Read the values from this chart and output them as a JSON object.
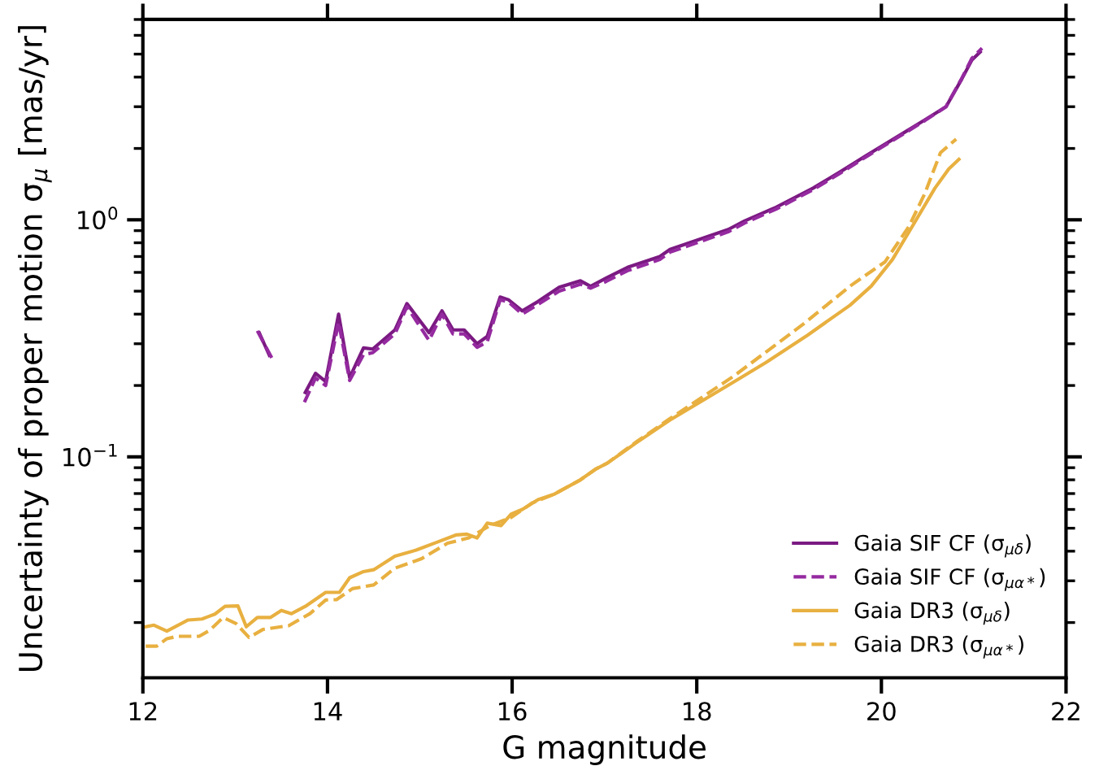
{
  "chart_data": {
    "type": "line",
    "xlabel": "G magnitude",
    "ylabel": "Uncertainty of proper motion σ$_{μ}$ [mas/yr]",
    "xlim": [
      12,
      22
    ],
    "xticks": [
      12,
      14,
      16,
      18,
      20,
      22
    ],
    "ylim": [
      0.0117,
      7.0
    ],
    "yticks": [
      {
        "value": 0.1,
        "label": "10$^{−1}$"
      },
      {
        "value": 1,
        "label": "10$^{0}$"
      }
    ],
    "log": "y",
    "grid": false,
    "legend": "bottom right",
    "series": [
      {
        "name": "Gaia SIF CF (σ$_{μδ}$)",
        "color": "#7b1a82",
        "line_style": "solid",
        "x": [
          13.26,
          13.37,
          13.5,
          13.76,
          13.87,
          13.98,
          14.12,
          14.24,
          14.39,
          14.49,
          14.73,
          14.86,
          15.1,
          15.24,
          15.36,
          15.48,
          15.62,
          15.73,
          15.87,
          15.96,
          16.11,
          16.28,
          16.51,
          16.74,
          16.85,
          17.02,
          17.25,
          17.6,
          17.71,
          18.0,
          18.34,
          18.52,
          18.86,
          19.26,
          19.55,
          19.84,
          20.18,
          20.47,
          20.7,
          20.87,
          20.98,
          21.07
        ],
        "values": [
          0.334,
          0.268,
          null,
          0.187,
          0.225,
          0.208,
          0.4,
          0.216,
          0.288,
          0.285,
          0.343,
          0.443,
          0.334,
          0.413,
          0.343,
          0.343,
          0.3,
          0.322,
          0.472,
          0.46,
          0.413,
          0.452,
          0.519,
          0.553,
          0.524,
          0.568,
          0.63,
          0.7,
          0.75,
          0.82,
          0.91,
          0.99,
          1.13,
          1.36,
          1.59,
          1.87,
          2.25,
          2.64,
          3.0,
          3.92,
          4.72,
          5.1
        ]
      },
      {
        "name": "Gaia SIF CF (σ$_{μα*}$)",
        "color": "#952aa0",
        "line_style": "dashed",
        "x": [
          13.24,
          13.4,
          13.5,
          13.75,
          13.87,
          13.98,
          14.12,
          14.24,
          14.39,
          14.49,
          14.73,
          14.86,
          15.1,
          15.24,
          15.36,
          15.48,
          15.62,
          15.73,
          15.87,
          15.96,
          16.11,
          16.28,
          16.51,
          16.74,
          16.85,
          17.02,
          17.25,
          17.6,
          17.71,
          18.0,
          18.34,
          18.52,
          18.86,
          19.26,
          19.55,
          19.84,
          20.18,
          20.47,
          20.7,
          20.87,
          20.98,
          21.09
        ],
        "values": [
          0.34,
          0.26,
          null,
          0.17,
          0.215,
          0.2,
          0.37,
          0.21,
          0.27,
          0.275,
          0.33,
          0.43,
          0.31,
          0.4,
          0.33,
          0.33,
          0.29,
          0.305,
          0.46,
          0.45,
          0.4,
          0.44,
          0.5,
          0.535,
          0.515,
          0.55,
          0.61,
          0.68,
          0.73,
          0.8,
          0.89,
          0.97,
          1.11,
          1.34,
          1.57,
          1.85,
          2.23,
          2.62,
          3.0,
          3.95,
          4.8,
          5.3
        ]
      },
      {
        "name": "Gaia DR3 (σ$_{μδ}$)",
        "color": "#e8b040",
        "line_style": "solid",
        "x": [
          12.03,
          12.12,
          12.26,
          12.49,
          12.64,
          12.78,
          12.89,
          13.03,
          13.12,
          13.24,
          13.38,
          13.5,
          13.61,
          13.76,
          13.98,
          14.13,
          14.24,
          14.39,
          14.5,
          14.73,
          14.96,
          15.19,
          15.39,
          15.51,
          15.62,
          15.73,
          15.88,
          15.99,
          16.11,
          16.28,
          16.45,
          16.74,
          16.91,
          17.03,
          17.35,
          17.71,
          18.4,
          18.75,
          19.2,
          19.66,
          19.89,
          20.12,
          20.35,
          20.58,
          20.73,
          20.84
        ],
        "values": [
          0.0192,
          0.0195,
          0.0184,
          0.0205,
          0.0207,
          0.0217,
          0.0234,
          0.0235,
          0.0192,
          0.021,
          0.021,
          0.0225,
          0.0218,
          0.0234,
          0.0268,
          0.0268,
          0.0309,
          0.0328,
          0.0334,
          0.0381,
          0.0404,
          0.0437,
          0.0468,
          0.0472,
          0.0455,
          0.0525,
          0.0513,
          0.0574,
          0.06,
          0.066,
          0.0694,
          0.08,
          0.089,
          0.094,
          0.115,
          0.143,
          0.207,
          0.25,
          0.326,
          0.436,
          0.525,
          0.68,
          0.96,
          1.36,
          1.64,
          1.8
        ]
      },
      {
        "name": "Gaia DR3 (σ$_{μα*}$)",
        "color": "#e8b040",
        "line_style": "dashed",
        "x": [
          12.03,
          12.15,
          12.26,
          12.38,
          12.61,
          12.72,
          12.87,
          13.01,
          13.15,
          13.3,
          13.58,
          13.81,
          13.98,
          14.1,
          14.27,
          14.5,
          14.73,
          15.02,
          15.3,
          15.53,
          15.76,
          15.99,
          16.22,
          16.45,
          16.74,
          16.91,
          17.03,
          17.35,
          17.71,
          18.4,
          19.15,
          19.66,
          20.04,
          20.3,
          20.47,
          20.64,
          20.81
        ],
        "values": [
          0.0159,
          0.0159,
          0.0171,
          0.0175,
          0.0175,
          0.0185,
          0.021,
          0.0198,
          0.0173,
          0.0187,
          0.0194,
          0.0218,
          0.0249,
          0.025,
          0.0278,
          0.0288,
          0.0339,
          0.0372,
          0.0432,
          0.0455,
          0.0513,
          0.0555,
          0.064,
          0.0694,
          0.08,
          0.089,
          0.094,
          0.116,
          0.145,
          0.219,
          0.362,
          0.525,
          0.665,
          0.94,
          1.29,
          1.92,
          2.19
        ]
      }
    ]
  }
}
